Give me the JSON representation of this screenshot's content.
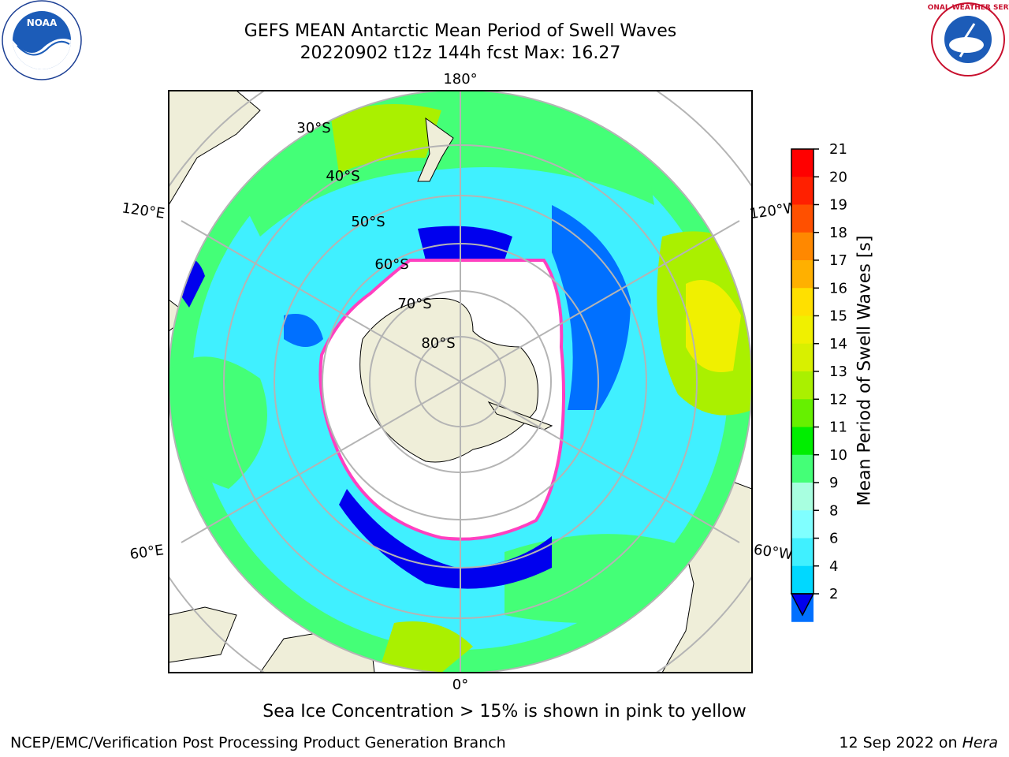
{
  "header": {
    "title_line1": "GEFS MEAN Antarctic Mean Period of Swell Waves",
    "title_line2": "20220902 t12z 144h fcst   Max: 16.27"
  },
  "logos": {
    "left": {
      "name": "noaa-logo",
      "text": "NOAA"
    },
    "right": {
      "name": "nws-logo",
      "text": "NATIONAL WEATHER SERVICE"
    }
  },
  "map": {
    "projection": "south-polar-stereographic",
    "longitude_labels": [
      "180°",
      "120°E",
      "120°W",
      "60°E",
      "60°W",
      "0°"
    ],
    "latitude_labels": [
      "30°S",
      "40°S",
      "50°S",
      "60°S",
      "70°S",
      "80°S"
    ],
    "colors": {
      "land": "#efeed9",
      "grid": "#b4b4b4",
      "ice_edge": "#ff40c0"
    }
  },
  "colorbar": {
    "label": "Mean Period of Swell Waves [s]",
    "ticks": [
      "21",
      "20",
      "19",
      "18",
      "17",
      "16",
      "15",
      "14",
      "13",
      "12",
      "11",
      "10",
      "9",
      "8",
      "6",
      "4",
      "2"
    ],
    "colors": [
      "#0000ee",
      "#0070ff",
      "#00d8ff",
      "#40f0ff",
      "#80ffff",
      "#a8ffe0",
      "#44ff77",
      "#00ee00",
      "#66f000",
      "#aaf000",
      "#d8f000",
      "#f0f000",
      "#ffe000",
      "#ffb000",
      "#ff8800",
      "#ff5000",
      "#ff2000",
      "#ff0000"
    ]
  },
  "notes": {
    "ice": "Sea Ice Concentration > 15% is shown in pink to yellow"
  },
  "footer": {
    "left": "NCEP/EMC/Verification Post Processing Product Generation Branch",
    "right_date": "12 Sep 2022 on ",
    "right_host": "Hera"
  }
}
